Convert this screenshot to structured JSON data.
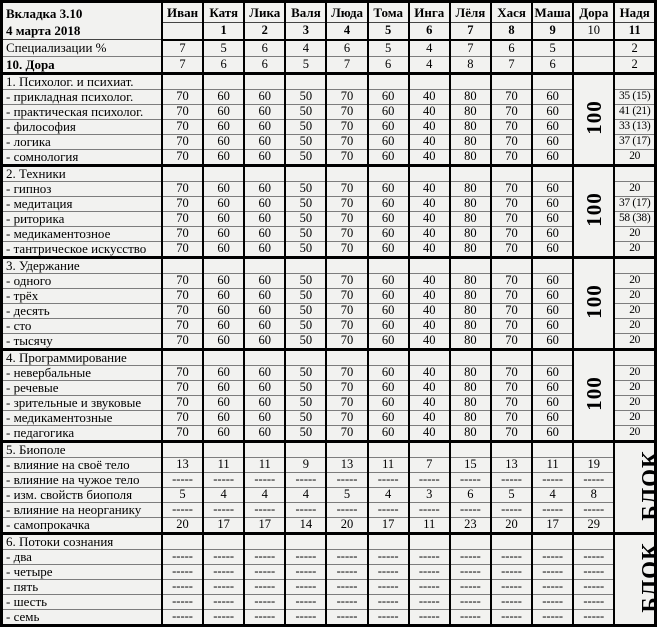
{
  "header": {
    "tab_label": "Вкладка 3.10",
    "date": "4 марта 2018"
  },
  "people": [
    {
      "name": "Иван",
      "num": "",
      "num_bold": false
    },
    {
      "name": "Катя",
      "num": "1",
      "num_bold": true
    },
    {
      "name": "Лика",
      "num": "2",
      "num_bold": true
    },
    {
      "name": "Валя",
      "num": "3",
      "num_bold": true
    },
    {
      "name": "Люда",
      "num": "4",
      "num_bold": true
    },
    {
      "name": "Тома",
      "num": "5",
      "num_bold": true
    },
    {
      "name": "Инга",
      "num": "6",
      "num_bold": true
    },
    {
      "name": "Лёля",
      "num": "7",
      "num_bold": true
    },
    {
      "name": "Хася",
      "num": "8",
      "num_bold": true
    },
    {
      "name": "Маша",
      "num": "9",
      "num_bold": true
    },
    {
      "name": "Дора",
      "num": "10",
      "num_bold": false
    },
    {
      "name": "Надя",
      "num": "11",
      "num_bold": true
    }
  ],
  "top_rows": [
    {
      "label": "Специализации %",
      "bold": false,
      "values": [
        "7",
        "5",
        "6",
        "4",
        "6",
        "5",
        "4",
        "7",
        "6",
        "5",
        "",
        "2"
      ]
    },
    {
      "label": "10. Дора",
      "bold": true,
      "values": [
        "7",
        "6",
        "6",
        "5",
        "7",
        "6",
        "4",
        "8",
        "7",
        "6",
        "",
        "2"
      ]
    }
  ],
  "sections": [
    {
      "title": "1. Психолог. и психиат.",
      "dora": {
        "merged": true,
        "text": "100"
      },
      "nadya": {
        "merged": false,
        "values": [
          "35 (15)",
          "41 (21)",
          "33 (13)",
          "37 (17)",
          "20"
        ]
      },
      "rows": [
        {
          "label": "- прикладная психолог.",
          "values": [
            "70",
            "60",
            "60",
            "50",
            "70",
            "60",
            "40",
            "80",
            "70",
            "60"
          ]
        },
        {
          "label": "- практическая психолог.",
          "values": [
            "70",
            "60",
            "60",
            "50",
            "70",
            "60",
            "40",
            "80",
            "70",
            "60"
          ]
        },
        {
          "label": "- философия",
          "values": [
            "70",
            "60",
            "60",
            "50",
            "70",
            "60",
            "40",
            "80",
            "70",
            "60"
          ]
        },
        {
          "label": "- логика",
          "values": [
            "70",
            "60",
            "60",
            "50",
            "70",
            "60",
            "40",
            "80",
            "70",
            "60"
          ]
        },
        {
          "label": "- сомнология",
          "values": [
            "70",
            "60",
            "60",
            "50",
            "70",
            "60",
            "40",
            "80",
            "70",
            "60"
          ]
        }
      ]
    },
    {
      "title": "2. Техники",
      "dora": {
        "merged": true,
        "text": "100"
      },
      "nadya": {
        "merged": false,
        "values": [
          "20",
          "37 (17)",
          "58 (38)",
          "20",
          "20"
        ]
      },
      "rows": [
        {
          "label": "- гипноз",
          "values": [
            "70",
            "60",
            "60",
            "50",
            "70",
            "60",
            "40",
            "80",
            "70",
            "60"
          ]
        },
        {
          "label": "- медитация",
          "values": [
            "70",
            "60",
            "60",
            "50",
            "70",
            "60",
            "40",
            "80",
            "70",
            "60"
          ]
        },
        {
          "label": "- риторика",
          "values": [
            "70",
            "60",
            "60",
            "50",
            "70",
            "60",
            "40",
            "80",
            "70",
            "60"
          ]
        },
        {
          "label": "- медикаментозное",
          "values": [
            "70",
            "60",
            "60",
            "50",
            "70",
            "60",
            "40",
            "80",
            "70",
            "60"
          ]
        },
        {
          "label": "- тантрическое искусство",
          "values": [
            "70",
            "60",
            "60",
            "50",
            "70",
            "60",
            "40",
            "80",
            "70",
            "60"
          ]
        }
      ]
    },
    {
      "title": "3. Удержание",
      "dora": {
        "merged": true,
        "text": "100"
      },
      "nadya": {
        "merged": false,
        "values": [
          "20",
          "20",
          "20",
          "20",
          "20"
        ]
      },
      "rows": [
        {
          "label": "- одного",
          "values": [
            "70",
            "60",
            "60",
            "50",
            "70",
            "60",
            "40",
            "80",
            "70",
            "60"
          ]
        },
        {
          "label": "- трёх",
          "values": [
            "70",
            "60",
            "60",
            "50",
            "70",
            "60",
            "40",
            "80",
            "70",
            "60"
          ]
        },
        {
          "label": "- десять",
          "values": [
            "70",
            "60",
            "60",
            "50",
            "70",
            "60",
            "40",
            "80",
            "70",
            "60"
          ]
        },
        {
          "label": "- сто",
          "values": [
            "70",
            "60",
            "60",
            "50",
            "70",
            "60",
            "40",
            "80",
            "70",
            "60"
          ]
        },
        {
          "label": "- тысячу",
          "values": [
            "70",
            "60",
            "60",
            "50",
            "70",
            "60",
            "40",
            "80",
            "70",
            "60"
          ]
        }
      ]
    },
    {
      "title": "4. Программирование",
      "dora": {
        "merged": true,
        "text": "100"
      },
      "nadya": {
        "merged": false,
        "values": [
          "20",
          "20",
          "20",
          "20",
          "20"
        ]
      },
      "rows": [
        {
          "label": "- невербальные",
          "values": [
            "70",
            "60",
            "60",
            "50",
            "70",
            "60",
            "40",
            "80",
            "70",
            "60"
          ]
        },
        {
          "label": "- речевые",
          "values": [
            "70",
            "60",
            "60",
            "50",
            "70",
            "60",
            "40",
            "80",
            "70",
            "60"
          ]
        },
        {
          "label": "- зрительные и звуковые",
          "values": [
            "70",
            "60",
            "60",
            "50",
            "70",
            "60",
            "40",
            "80",
            "70",
            "60"
          ]
        },
        {
          "label": "- медикаментозные",
          "values": [
            "70",
            "60",
            "60",
            "50",
            "70",
            "60",
            "40",
            "80",
            "70",
            "60"
          ]
        },
        {
          "label": "- педагогика",
          "values": [
            "70",
            "60",
            "60",
            "50",
            "70",
            "60",
            "40",
            "80",
            "70",
            "60"
          ]
        }
      ]
    },
    {
      "title": "5. Биополе",
      "dora": {
        "merged": false,
        "values": [
          "19",
          "-----",
          "8",
          "-----",
          "29"
        ]
      },
      "nadya": {
        "merged": true,
        "text": "БЛОК"
      },
      "rows": [
        {
          "label": "- влияние на своё тело",
          "values": [
            "13",
            "11",
            "11",
            "9",
            "13",
            "11",
            "7",
            "15",
            "13",
            "11"
          ]
        },
        {
          "label": "- влияние на чужое тело",
          "values": [
            "-----",
            "-----",
            "-----",
            "-----",
            "-----",
            "-----",
            "-----",
            "-----",
            "-----",
            "-----"
          ]
        },
        {
          "label": "- изм. свойств биополя",
          "values": [
            "5",
            "4",
            "4",
            "4",
            "5",
            "4",
            "3",
            "6",
            "5",
            "4"
          ]
        },
        {
          "label": "- влияние на неорганику",
          "values": [
            "-----",
            "-----",
            "-----",
            "-----",
            "-----",
            "-----",
            "-----",
            "-----",
            "-----",
            "-----"
          ]
        },
        {
          "label": "- самопрокачка",
          "values": [
            "20",
            "17",
            "17",
            "14",
            "20",
            "17",
            "11",
            "23",
            "20",
            "17"
          ]
        }
      ]
    },
    {
      "title": "6. Потоки сознания",
      "dora": {
        "merged": false,
        "values": [
          "-----",
          "-----",
          "-----",
          "-----",
          "-----"
        ]
      },
      "nadya": {
        "merged": true,
        "text": "БЛОК"
      },
      "rows": [
        {
          "label": "- два",
          "values": [
            "-----",
            "-----",
            "-----",
            "-----",
            "-----",
            "-----",
            "-----",
            "-----",
            "-----",
            "-----"
          ]
        },
        {
          "label": "- четыре",
          "values": [
            "-----",
            "-----",
            "-----",
            "-----",
            "-----",
            "-----",
            "-----",
            "-----",
            "-----",
            "-----"
          ]
        },
        {
          "label": "- пять",
          "values": [
            "-----",
            "-----",
            "-----",
            "-----",
            "-----",
            "-----",
            "-----",
            "-----",
            "-----",
            "-----"
          ]
        },
        {
          "label": "- шесть",
          "values": [
            "-----",
            "-----",
            "-----",
            "-----",
            "-----",
            "-----",
            "-----",
            "-----",
            "-----",
            "-----"
          ]
        },
        {
          "label": "- семь",
          "values": [
            "-----",
            "-----",
            "-----",
            "-----",
            "-----",
            "-----",
            "-----",
            "-----",
            "-----",
            "-----"
          ]
        }
      ]
    }
  ]
}
